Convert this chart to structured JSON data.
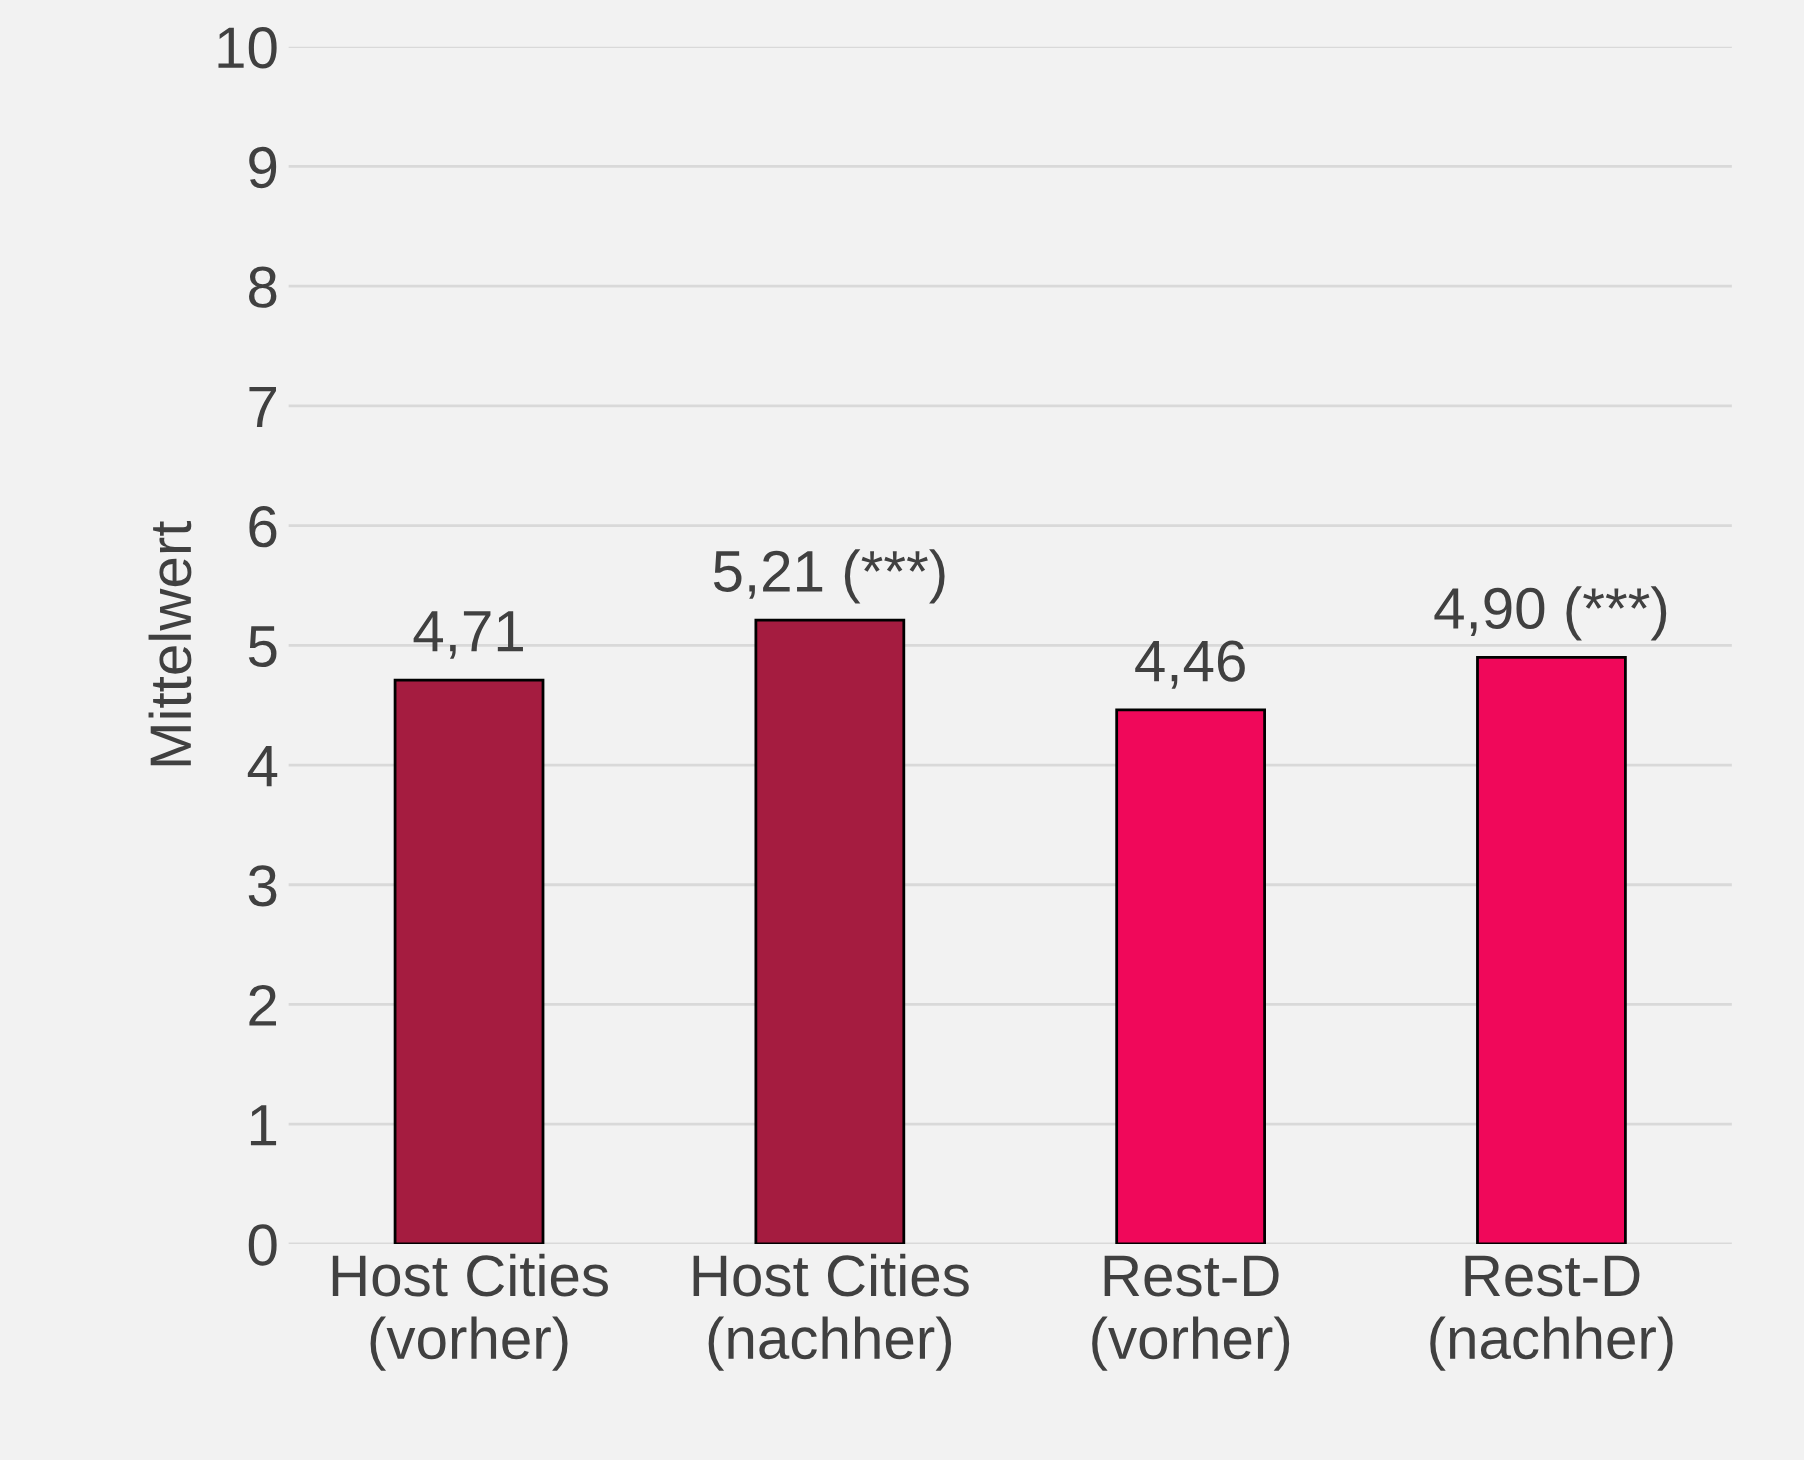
{
  "chart_data": {
    "type": "bar",
    "ylabel": "Mittelwert",
    "categories": [
      "Host Cities\n(vorher)",
      "Host Cities\n(nachher)",
      "Rest-D\n(vorher)",
      "Rest-D\n(nachher)"
    ],
    "values": [
      4.71,
      5.21,
      4.46,
      4.9
    ],
    "colors": [
      "#a51c40",
      "#a51c40",
      "#f0085a",
      "#f0085a"
    ],
    "value_labels": [
      "4,71",
      "5,21 (***)",
      "4,46",
      "4,90 (***)"
    ],
    "ylim": [
      0,
      10
    ],
    "yticks": [
      0,
      1,
      2,
      3,
      4,
      5,
      6,
      7,
      8,
      9,
      10
    ],
    "grid": "y",
    "legend": false
  }
}
